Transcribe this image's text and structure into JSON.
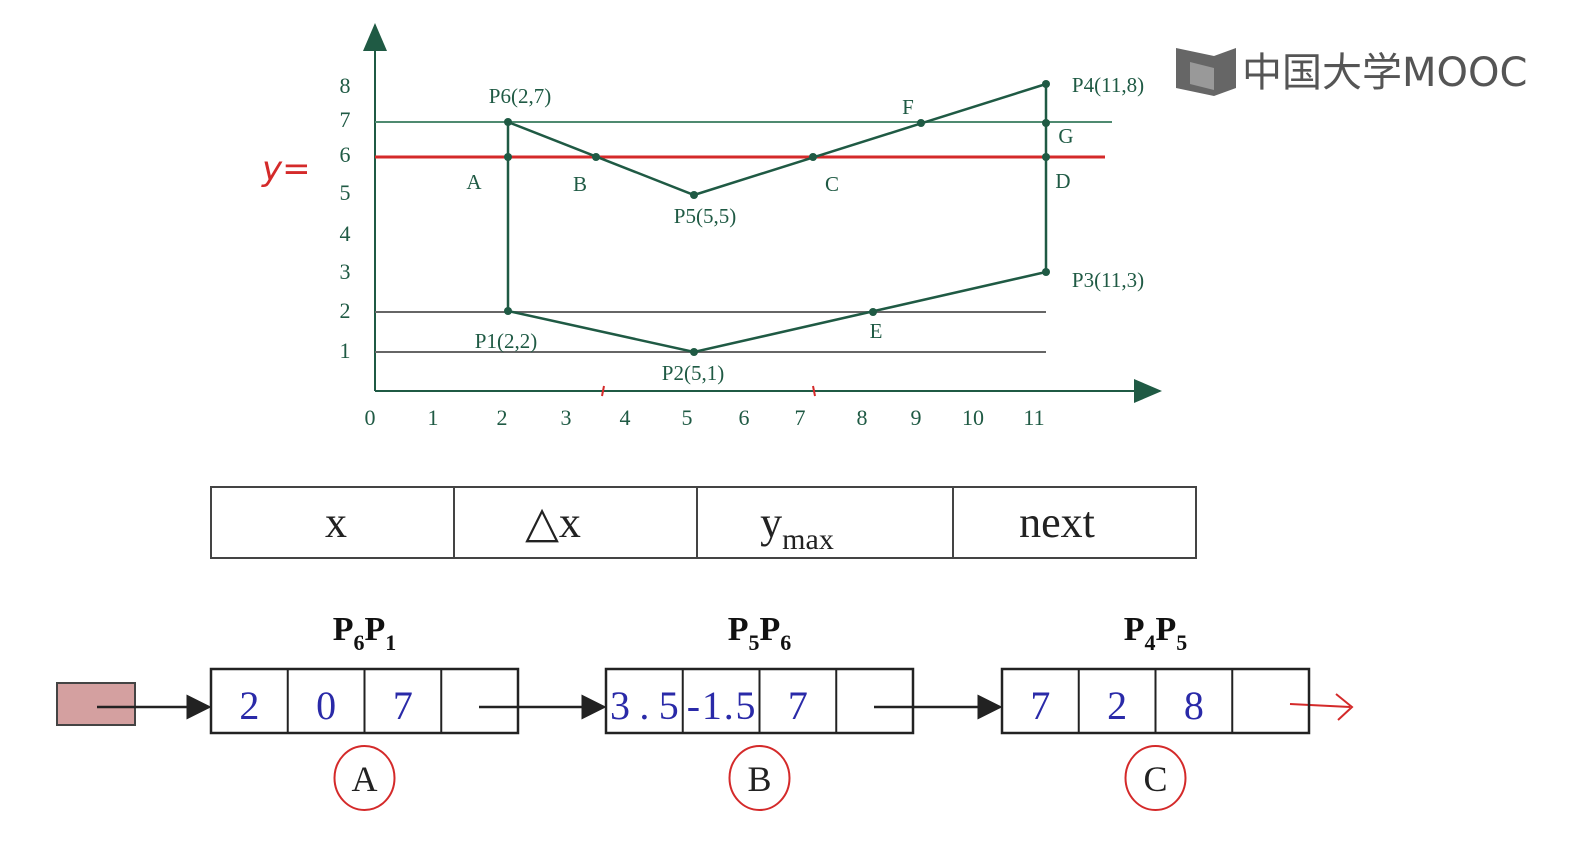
{
  "logo": "中国大学MOOC",
  "plot": {
    "y_note": "y=",
    "yticks": [
      "8",
      "7",
      "6",
      "5",
      "4",
      "3",
      "2",
      "1"
    ],
    "xticks": [
      "0",
      "1",
      "2",
      "3",
      "4",
      "5",
      "6",
      "7",
      "8",
      "9",
      "10",
      "11"
    ],
    "vertices": [
      "P6(2,7)",
      "P5(5,5)",
      "P4(11,8)",
      "P3(11,3)",
      "P1(2,2)",
      "P2(5,1)"
    ],
    "intersections": [
      "A",
      "B",
      "C",
      "D",
      "E",
      "F",
      "G"
    ]
  },
  "table": {
    "header": [
      {
        "text": "x"
      },
      {
        "text": "△x"
      },
      {
        "text": "y",
        "sub": "max"
      },
      {
        "text": "next"
      }
    ]
  },
  "nodes": [
    {
      "title": [
        {
          "text": "P",
          "sub": "6"
        },
        {
          "text": "P",
          "sub": "1"
        }
      ],
      "cells": [
        "2",
        "0",
        "7"
      ],
      "tag": "A"
    },
    {
      "title": [
        {
          "text": "P",
          "sub": "5"
        },
        {
          "text": "P",
          "sub": "6"
        }
      ],
      "cells": [
        "3.5",
        "-1.5",
        "7"
      ],
      "tag": "B"
    },
    {
      "title": [
        {
          "text": "P",
          "sub": "4"
        },
        {
          "text": "P",
          "sub": "5"
        }
      ],
      "cells": [
        "7",
        "2",
        "8"
      ],
      "tag": "C"
    }
  ]
}
